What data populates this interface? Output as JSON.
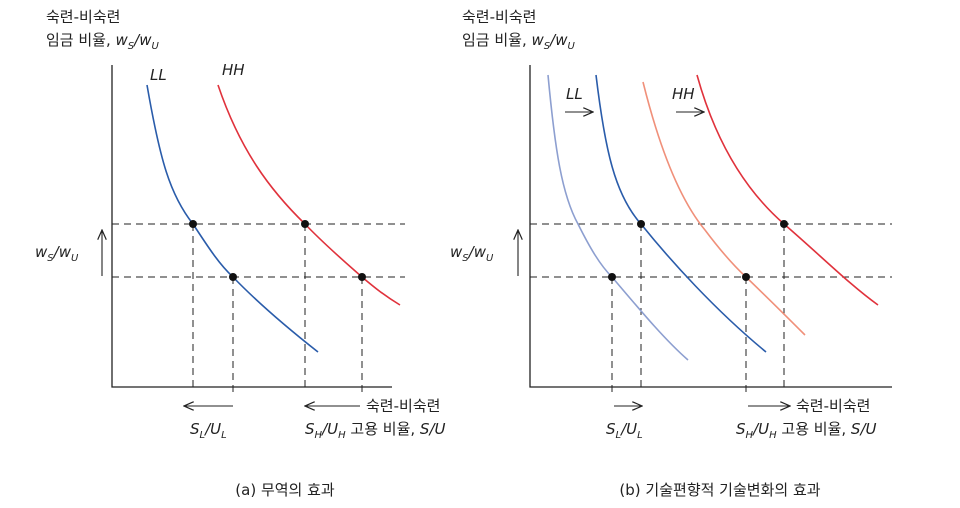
{
  "panels": [
    {
      "ylabel_line1": "숙련-비숙련",
      "ylabel_line2": [
        [
          "임금 비율, ",
          ""
        ],
        [
          "w",
          "i"
        ],
        [
          "S",
          "sub"
        ],
        [
          "/w",
          "i"
        ],
        [
          "U",
          "sub"
        ]
      ],
      "y_marker": [
        [
          "w",
          "i"
        ],
        [
          "S",
          "sub"
        ],
        [
          "/w",
          "i"
        ],
        [
          "U",
          "sub"
        ]
      ],
      "curve_labels": [
        "LL",
        "HH"
      ],
      "xlabel_top": "숙련-비숙련",
      "x_marker_low": [
        [
          "S",
          "i"
        ],
        [
          "L",
          "sub"
        ],
        [
          "/U",
          "i"
        ],
        [
          "L",
          "sub"
        ]
      ],
      "x_marker_high": [
        [
          "S",
          "i"
        ],
        [
          "H",
          "sub"
        ],
        [
          "/U",
          "i"
        ],
        [
          "H",
          "sub"
        ],
        [
          " 고용 비율, ",
          ""
        ],
        [
          "S/U",
          "i"
        ]
      ],
      "caption": "(a) 무역의 효과"
    },
    {
      "ylabel_line1": "숙련-비숙련",
      "ylabel_line2": [
        [
          "임금 비율, ",
          ""
        ],
        [
          "w",
          "i"
        ],
        [
          "S",
          "sub"
        ],
        [
          "/w",
          "i"
        ],
        [
          "U",
          "sub"
        ]
      ],
      "y_marker": [
        [
          "w",
          "i"
        ],
        [
          "S",
          "sub"
        ],
        [
          "/w",
          "i"
        ],
        [
          "U",
          "sub"
        ]
      ],
      "curve_labels": [
        "LL",
        "HH"
      ],
      "xlabel_top": "숙련-비숙련",
      "x_marker_low": [
        [
          "S",
          "i"
        ],
        [
          "L",
          "sub"
        ],
        [
          "/U",
          "i"
        ],
        [
          "L",
          "sub"
        ]
      ],
      "x_marker_high": [
        [
          "S",
          "i"
        ],
        [
          "H",
          "sub"
        ],
        [
          "/U",
          "i"
        ],
        [
          "H",
          "sub"
        ],
        [
          " 고용 비율, ",
          ""
        ],
        [
          "S/U",
          "i"
        ]
      ],
      "caption": "(b) 기술편향적 기술변화의 효과"
    }
  ]
}
